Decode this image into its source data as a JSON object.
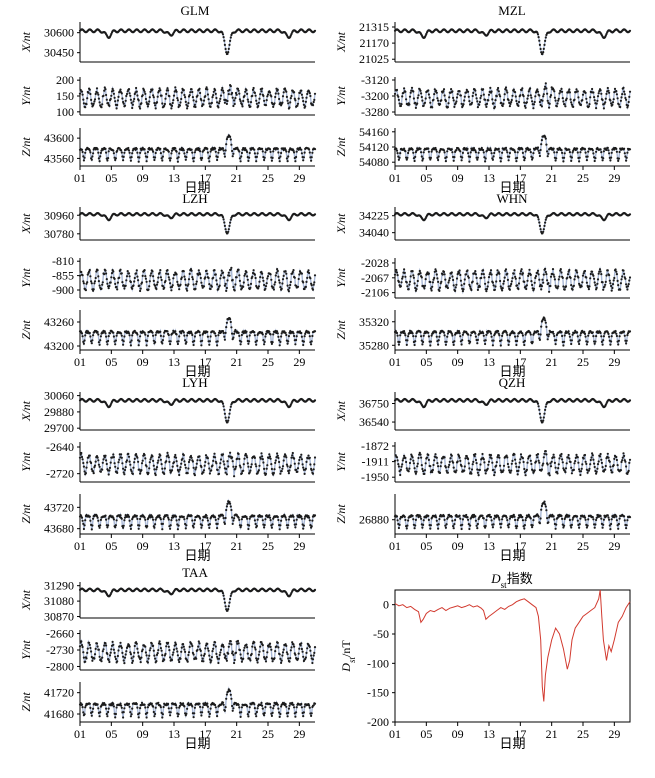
{
  "figure": {
    "x_ticks": [
      "01",
      "05",
      "09",
      "13",
      "17",
      "21",
      "25",
      "29"
    ],
    "x_label": "日期",
    "colors": {
      "observed": "#1c1c1c",
      "model": "#a9b8d6",
      "dst": "#d23a2f"
    }
  },
  "chart_data": [
    {
      "type": "scatter",
      "station": "GLM",
      "title": "GLM",
      "series": [
        {
          "component": "X",
          "ylabel": "X/nt",
          "yticks": [
            "30600",
            "30450"
          ],
          "ytick_values": [
            30600,
            30450
          ],
          "ylim": [
            30380,
            30680
          ]
        },
        {
          "component": "Y",
          "ylabel": "Y/nt",
          "yticks": [
            "200",
            "150",
            "100"
          ],
          "ytick_values": [
            200,
            150,
            100
          ],
          "ylim": [
            90,
            210
          ]
        },
        {
          "component": "Z",
          "ylabel": "Z/nt",
          "yticks": [
            "43600",
            "43560"
          ],
          "ytick_values": [
            43600,
            43560
          ],
          "ylim": [
            43545,
            43620
          ]
        }
      ]
    },
    {
      "type": "scatter",
      "station": "MZL",
      "title": "MZL",
      "series": [
        {
          "component": "X",
          "ylabel": "X/nt",
          "yticks": [
            "21315",
            "21170",
            "21025"
          ],
          "ytick_values": [
            21315,
            21170,
            21025
          ],
          "ylim": [
            21000,
            21360
          ]
        },
        {
          "component": "Y",
          "ylabel": "Y/nt",
          "yticks": [
            "-3120",
            "-3200",
            "-3280"
          ],
          "ytick_values": [
            -3120,
            -3200,
            -3280
          ],
          "ylim": [
            -3295,
            -3105
          ]
        },
        {
          "component": "Z",
          "ylabel": "Z/nt",
          "yticks": [
            "54160",
            "54120",
            "54080"
          ],
          "ytick_values": [
            54160,
            54120,
            54080
          ],
          "ylim": [
            54070,
            54170
          ]
        }
      ]
    },
    {
      "type": "scatter",
      "station": "LZH",
      "title": "LZH",
      "series": [
        {
          "component": "X",
          "ylabel": "X/nt",
          "yticks": [
            "30960",
            "30780"
          ],
          "ytick_values": [
            30960,
            30780
          ],
          "ylim": [
            30720,
            31040
          ]
        },
        {
          "component": "Y",
          "ylabel": "Y/nt",
          "yticks": [
            "-810",
            "-855",
            "-900"
          ],
          "ytick_values": [
            -810,
            -855,
            -900
          ],
          "ylim": [
            -925,
            -800
          ]
        },
        {
          "component": "Z",
          "ylabel": "Z/nt",
          "yticks": [
            "43260",
            "43200"
          ],
          "ytick_values": [
            43260,
            43200
          ],
          "ylim": [
            43190,
            43290
          ]
        }
      ]
    },
    {
      "type": "scatter",
      "station": "WHN",
      "title": "WHN",
      "series": [
        {
          "component": "X",
          "ylabel": "X/nt",
          "yticks": [
            "34225",
            "34040"
          ],
          "ytick_values": [
            34225,
            34040
          ],
          "ylim": [
            33960,
            34320
          ]
        },
        {
          "component": "Y",
          "ylabel": "Y/nt",
          "yticks": [
            "-2028",
            "-2067",
            "-2106"
          ],
          "ytick_values": [
            -2028,
            -2067,
            -2106
          ],
          "ylim": [
            -2120,
            -2015
          ]
        },
        {
          "component": "Z",
          "ylabel": "Z/nt",
          "yticks": [
            "35320",
            "35280"
          ],
          "ytick_values": [
            35320,
            35280
          ],
          "ylim": [
            35272,
            35340
          ]
        }
      ]
    },
    {
      "type": "scatter",
      "station": "LYH",
      "title": "LYH",
      "series": [
        {
          "component": "X",
          "ylabel": "X/nt",
          "yticks": [
            "30060",
            "29880",
            "29700"
          ],
          "ytick_values": [
            30060,
            29880,
            29700
          ],
          "ylim": [
            29680,
            30100
          ]
        },
        {
          "component": "Y",
          "ylabel": "Y/nt",
          "yticks": [
            "-2640",
            "-2720"
          ],
          "ytick_values": [
            -2640,
            -2720
          ],
          "ylim": [
            -2745,
            -2625
          ]
        },
        {
          "component": "Z",
          "ylabel": "Z/nt",
          "yticks": [
            "43720",
            "43680"
          ],
          "ytick_values": [
            43720,
            43680
          ],
          "ylim": [
            43670,
            43745
          ]
        }
      ]
    },
    {
      "type": "scatter",
      "station": "QZH",
      "title": "QZH",
      "series": [
        {
          "component": "X",
          "ylabel": "X/nt",
          "yticks": [
            "36750",
            "36540"
          ],
          "ytick_values": [
            36750,
            36540
          ],
          "ylim": [
            36450,
            36880
          ]
        },
        {
          "component": "Y",
          "ylabel": "Y/nt",
          "yticks": [
            "-1872",
            "-1911",
            "-1950"
          ],
          "ytick_values": [
            -1872,
            -1911,
            -1950
          ],
          "ylim": [
            -1962,
            -1862
          ]
        },
        {
          "component": "Z",
          "ylabel": "Z/nt",
          "yticks": [
            "26880"
          ],
          "ytick_values": [
            26880
          ],
          "ylim": [
            26855,
            26925
          ]
        }
      ]
    },
    {
      "type": "scatter",
      "station": "TAA",
      "title": "TAA",
      "series": [
        {
          "component": "X",
          "ylabel": "X/nt",
          "yticks": [
            "31290",
            "31080",
            "30870"
          ],
          "ytick_values": [
            31290,
            31080,
            30870
          ],
          "ylim": [
            30850,
            31340
          ]
        },
        {
          "component": "Y",
          "ylabel": "Y/nt",
          "yticks": [
            "-2660",
            "-2730",
            "-2800"
          ],
          "ytick_values": [
            -2660,
            -2730,
            -2800
          ],
          "ylim": [
            -2815,
            -2645
          ]
        },
        {
          "component": "Z",
          "ylabel": "Z/nt",
          "yticks": [
            "41720",
            "41680"
          ],
          "ytick_values": [
            41720,
            41680
          ],
          "ylim": [
            41665,
            41740
          ]
        }
      ]
    },
    {
      "type": "line",
      "station": "Dst",
      "title_main": "D",
      "title_sub": "st",
      "title_suffix": "指数",
      "ylabel_main": "D",
      "ylabel_sub": "st",
      "ylabel_suffix": "/nT",
      "yticks": [
        "0",
        "-50",
        "-100",
        "-150",
        "-200"
      ],
      "ytick_values": [
        0,
        -50,
        -100,
        -150,
        -200
      ],
      "ylim": [
        -200,
        25
      ],
      "xlim": [
        1,
        31
      ],
      "x": [
        1,
        1.5,
        2,
        2.5,
        3,
        3.5,
        4,
        4.3,
        4.6,
        5,
        5.5,
        6,
        6.5,
        7,
        7.5,
        8,
        8.5,
        9,
        9.5,
        10,
        10.5,
        11,
        11.5,
        12,
        12.3,
        12.6,
        13,
        13.5,
        14,
        14.5,
        15,
        15.5,
        16,
        16.5,
        17,
        17.5,
        18,
        18.5,
        19,
        19.3,
        19.6,
        19.8,
        20,
        20.2,
        20.5,
        21,
        21.5,
        22,
        22.5,
        23,
        23.3,
        23.6,
        24,
        24.5,
        25,
        25.5,
        26,
        26.5,
        27,
        27.2,
        27.4,
        27.6,
        28,
        28.3,
        28.6,
        29,
        29.5,
        30,
        30.5,
        31
      ],
      "values": [
        2,
        -2,
        0,
        -5,
        -3,
        -8,
        -12,
        -30,
        -25,
        -15,
        -10,
        -12,
        -8,
        -5,
        -10,
        -6,
        -4,
        -2,
        -5,
        -3,
        0,
        -4,
        -2,
        -6,
        -10,
        -25,
        -20,
        -15,
        -10,
        -5,
        -8,
        -3,
        0,
        5,
        8,
        10,
        5,
        0,
        -5,
        -20,
        -60,
        -140,
        -165,
        -120,
        -90,
        -60,
        -40,
        -50,
        -75,
        -110,
        -95,
        -60,
        -40,
        -30,
        -20,
        -15,
        -10,
        -5,
        10,
        25,
        -20,
        -60,
        -95,
        -70,
        -80,
        -60,
        -30,
        -20,
        -5,
        5
      ]
    }
  ]
}
